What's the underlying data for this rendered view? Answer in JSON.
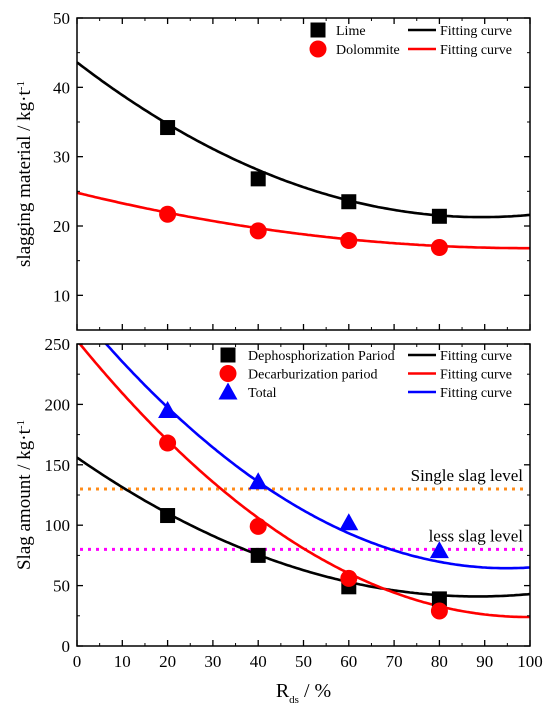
{
  "chart_data": [
    {
      "type": "scatter",
      "ylabel": "slagging material / kg·t",
      "ylabel_sup": "-1",
      "xlim": [
        0,
        100
      ],
      "ylim": [
        5,
        50
      ],
      "yticks": [
        10,
        20,
        30,
        40,
        50
      ],
      "legend_position": "top-right",
      "series": [
        {
          "name": "Lime",
          "marker": "square",
          "color": "#000000",
          "x": [
            20,
            40,
            60,
            80
          ],
          "y": [
            34.2,
            26.8,
            23.5,
            21.4
          ]
        },
        {
          "name": "Dolommite",
          "marker": "circle",
          "color": "#ff0000",
          "x": [
            20,
            40,
            60,
            80
          ],
          "y": [
            21.7,
            19.3,
            17.9,
            16.9
          ]
        }
      ],
      "fits": [
        {
          "name": "Fitting curve",
          "color": "#000000",
          "coef": [
            43.6,
            -0.5,
            0.0028
          ]
        },
        {
          "name": "Fitting curve",
          "color": "#ff0000",
          "coef": [
            24.8,
            -0.16,
            0.0008
          ]
        }
      ]
    },
    {
      "type": "scatter",
      "xlabel": "R",
      "xlabel_sub": "ds",
      "xlabel_unit": "  / %",
      "ylabel": "Slag amount / kg·t",
      "ylabel_sup": "-1",
      "xlim": [
        0,
        100
      ],
      "ylim": [
        0,
        250
      ],
      "xticks": [
        0,
        10,
        20,
        30,
        40,
        50,
        60,
        70,
        80,
        90,
        100
      ],
      "yticks": [
        0,
        50,
        100,
        150,
        200,
        250
      ],
      "legend_position": "top-right",
      "series": [
        {
          "name": "Dephosphorization Pariod",
          "marker": "square",
          "color": "#000000",
          "x": [
            20,
            40,
            60,
            80
          ],
          "y": [
            108,
            75,
            49,
            39
          ]
        },
        {
          "name": "Decarburization pariod",
          "marker": "circle",
          "color": "#ff0000",
          "x": [
            20,
            40,
            60,
            80
          ],
          "y": [
            168,
            99,
            56,
            29
          ]
        },
        {
          "name": "Total",
          "marker": "triangle",
          "color": "#0000ff",
          "x": [
            20,
            40,
            60,
            80
          ],
          "y": [
            195,
            136,
            102,
            79
          ]
        }
      ],
      "fits": [
        {
          "name": "Fitting curve",
          "color": "#000000",
          "coef": [
            156,
            -2.6,
            0.0147
          ]
        },
        {
          "name": "Fitting curve",
          "color": "#ff0000",
          "coef": [
            253,
            -4.6,
            0.0231
          ]
        },
        {
          "name": "Fitting curve",
          "color": "#0000ff",
          "coef": [
            278,
            -4.5,
            0.0237
          ]
        }
      ],
      "hlines": [
        {
          "label": "Single slag level",
          "y": 130,
          "color": "#ff8c1a"
        },
        {
          "label": "less slag level",
          "y": 80,
          "color": "#ff00ff"
        }
      ]
    }
  ]
}
